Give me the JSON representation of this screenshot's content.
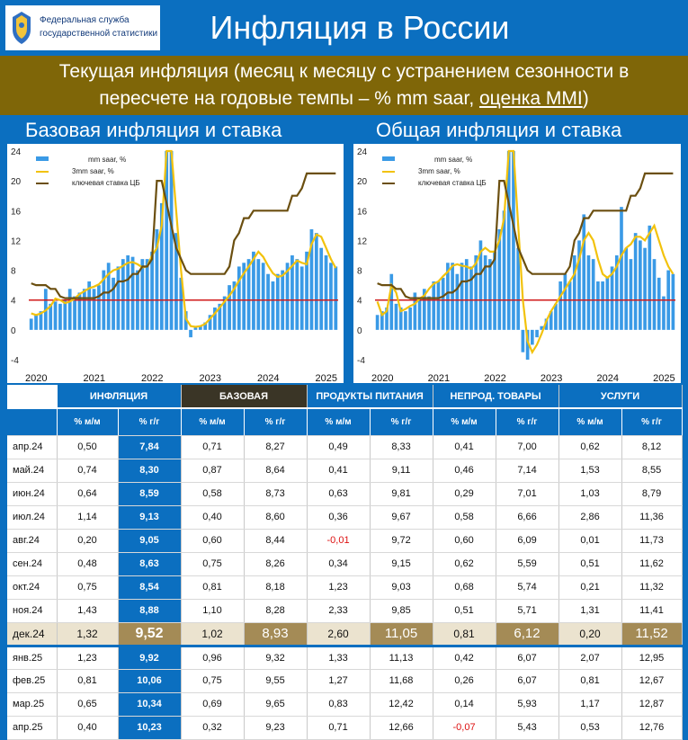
{
  "header": {
    "logo_line1": "Федеральная служба",
    "logo_line2": "государственной статистики",
    "title": "Инфляция в России"
  },
  "banner": {
    "line1": "Текущая инфляция (месяц к месяцу с устранением сезонности в",
    "line2_pre": "пересчете на годовые темпы – % mm saar, ",
    "line2_link": "оценка MMI",
    "line2_post": ")"
  },
  "colors": {
    "bars": "#3a9ae6",
    "smooth": "#f2c20c",
    "rate": "#6b4f10",
    "target": "#d11a1a",
    "accent": "#0b6fc0",
    "brown": "#7f6608"
  },
  "chart_data": [
    {
      "type": "bar",
      "title": "Базовая инфляция и ставка",
      "legend": [
        "mm saar, %",
        "3mm saar, %",
        "ключевая ставка ЦБ"
      ],
      "legend_position": "top-left",
      "x_labels": [
        "2020",
        "2021",
        "2022",
        "2023",
        "2024",
        "2025"
      ],
      "ylim": [
        -4,
        24
      ],
      "yticks": [
        -4,
        0,
        4,
        8,
        12,
        16,
        20,
        24
      ],
      "target_line": 4,
      "series": [
        {
          "name": "mm saar, %",
          "type": "bar",
          "values": [
            1.5,
            2.0,
            2.5,
            5.5,
            3.5,
            3.8,
            3.5,
            4.0,
            5.5,
            4.5,
            5.0,
            5.5,
            6.5,
            5.5,
            6.0,
            8.0,
            9.0,
            7.0,
            8.5,
            9.5,
            10,
            9.8,
            8.0,
            9.5,
            9.5,
            10.5,
            13.5,
            17,
            24,
            24,
            13,
            7,
            2.5,
            -1,
            0.3,
            0.5,
            1.0,
            2.0,
            3.0,
            3.5,
            4.5,
            6.0,
            6.5,
            8.5,
            9.0,
            9.5,
            10.5,
            9.5,
            9.0,
            7.5,
            6.5,
            7.5,
            8.0,
            9.0,
            10.0,
            9.5,
            8.5,
            10.5,
            13.5,
            13.0,
            11.0,
            10.0,
            9.0,
            8.5
          ]
        },
        {
          "name": "3mm saar, %",
          "type": "line",
          "values": [
            2.2,
            2.0,
            2.2,
            2.6,
            3.2,
            4.2,
            4.0,
            3.6,
            3.8,
            4.2,
            4.8,
            5.2,
            5.6,
            5.8,
            6.1,
            6.8,
            7.5,
            8.0,
            8.2,
            8.6,
            9.0,
            9.1,
            8.8,
            8.4,
            8.5,
            10,
            11,
            14,
            24,
            24,
            16,
            8,
            1.5,
            0.5,
            0.4,
            0.5,
            0.8,
            1.5,
            2.2,
            3.0,
            3.8,
            4.6,
            5.5,
            6.6,
            7.6,
            8.5,
            9.5,
            10.5,
            9.8,
            8.6,
            7.6,
            7.1,
            7.3,
            7.9,
            8.6,
            9.3,
            9.0,
            8.8,
            11.5,
            12.8,
            12.5,
            11.0,
            9.5,
            8.3
          ]
        },
        {
          "name": "ключевая ставка ЦБ",
          "type": "line",
          "values": [
            6.25,
            6.0,
            6.0,
            6.0,
            5.5,
            5.5,
            4.5,
            4.25,
            4.25,
            4.25,
            4.25,
            4.25,
            4.25,
            4.25,
            4.5,
            5.0,
            5.0,
            5.5,
            6.5,
            6.5,
            6.75,
            7.5,
            7.5,
            8.5,
            8.5,
            9.5,
            20,
            20,
            17,
            14,
            11,
            9.5,
            8.0,
            7.5,
            7.5,
            7.5,
            7.5,
            7.5,
            7.5,
            7.5,
            7.5,
            8.5,
            12,
            13,
            15,
            15,
            16,
            16,
            16,
            16,
            16,
            16,
            16,
            16,
            18,
            18,
            19,
            21,
            21,
            21,
            21,
            21,
            21,
            21
          ]
        }
      ]
    },
    {
      "type": "bar",
      "title": "Общая инфляция и ставка",
      "legend": [
        "mm saar, %",
        "3mm saar, %",
        "ключевая ставка ЦБ"
      ],
      "legend_position": "top-left",
      "x_labels": [
        "2020",
        "2021",
        "2022",
        "2023",
        "2024",
        "2025"
      ],
      "ylim": [
        -4,
        24
      ],
      "yticks": [
        -4,
        0,
        4,
        8,
        12,
        16,
        20,
        24
      ],
      "target_line": 4,
      "series": [
        {
          "name": "mm saar, %",
          "type": "bar",
          "values": [
            2.0,
            2.5,
            3.0,
            7.5,
            3.5,
            3.0,
            2.5,
            3.0,
            5.0,
            4.0,
            5.5,
            4.5,
            6.5,
            6.5,
            7.0,
            9.0,
            9.0,
            7.5,
            9.0,
            9.5,
            8.5,
            10,
            12,
            10,
            9.5,
            10.5,
            13.5,
            16,
            24,
            24,
            11,
            -3,
            -4,
            -2,
            -1,
            0.5,
            1.5,
            2.5,
            3.5,
            6.5,
            7.5,
            6.5,
            10,
            12,
            15.5,
            10,
            9.5,
            6.5,
            6.5,
            7.0,
            8.5,
            10,
            16.5,
            11,
            9.5,
            13,
            12,
            11,
            14,
            9.5,
            7.0,
            4.5,
            8.0,
            7.5
          ]
        },
        {
          "name": "3mm saar, %",
          "type": "line",
          "values": [
            3.8,
            2.0,
            2.5,
            6.0,
            5.0,
            2.5,
            2.8,
            3.2,
            3.5,
            4.2,
            4.6,
            5.5,
            6.2,
            6.5,
            7.2,
            7.8,
            8.6,
            8.8,
            8.6,
            8.5,
            8.2,
            8.9,
            10.5,
            11,
            10.5,
            10.5,
            12,
            15,
            24,
            24,
            14,
            4,
            -1.5,
            -3,
            -2,
            -0.5,
            1.2,
            2.5,
            3.5,
            4.5,
            5.5,
            6.5,
            7.5,
            9.5,
            12,
            13,
            12,
            9.5,
            7.5,
            7.0,
            7.5,
            8.5,
            10,
            11,
            11.5,
            12.5,
            12.5,
            12,
            13,
            14,
            12,
            10,
            8.5,
            7.5
          ]
        },
        {
          "name": "ключевая ставка ЦБ",
          "type": "line",
          "values": [
            6.25,
            6.0,
            6.0,
            6.0,
            5.5,
            5.5,
            4.5,
            4.25,
            4.25,
            4.25,
            4.25,
            4.25,
            4.25,
            4.25,
            4.5,
            5.0,
            5.0,
            5.5,
            6.5,
            6.5,
            6.75,
            7.5,
            7.5,
            8.5,
            8.5,
            9.5,
            20,
            20,
            17,
            14,
            11,
            9.5,
            8.0,
            7.5,
            7.5,
            7.5,
            7.5,
            7.5,
            7.5,
            7.5,
            7.5,
            8.5,
            12,
            13,
            15,
            15,
            16,
            16,
            16,
            16,
            16,
            16,
            16,
            16,
            18,
            18,
            19,
            21,
            21,
            21,
            21,
            21,
            21,
            21
          ]
        }
      ]
    }
  ],
  "subtitles": {
    "left": "Базовая инфляция и ставка",
    "right": "Общая инфляция и ставка"
  },
  "table": {
    "groups": [
      {
        "label": "ИНФЛЯЦИЯ",
        "style": "blue"
      },
      {
        "label": "БАЗОВАЯ",
        "style": "dark"
      },
      {
        "label": "ПРОДУКТЫ ПИТАНИЯ",
        "style": "blue"
      },
      {
        "label": "НЕПРОД. ТОВАРЫ",
        "style": "blue"
      },
      {
        "label": "УСЛУГИ",
        "style": "blue"
      }
    ],
    "col_headers": [
      "% м/м",
      "% г/г",
      "% м/м",
      "% г/г",
      "% м/м",
      "% г/г",
      "% м/м",
      "% г/г",
      "% м/м",
      "% г/г"
    ],
    "rows": [
      {
        "m": "апр.24",
        "v": [
          "0,50",
          "7,84",
          "0,71",
          "8,27",
          "0,49",
          "8,33",
          "0,41",
          "7,00",
          "0,62",
          "8,12"
        ]
      },
      {
        "m": "май.24",
        "v": [
          "0,74",
          "8,30",
          "0,87",
          "8,64",
          "0,41",
          "9,11",
          "0,46",
          "7,14",
          "1,53",
          "8,55"
        ]
      },
      {
        "m": "июн.24",
        "v": [
          "0,64",
          "8,59",
          "0,58",
          "8,73",
          "0,63",
          "9,81",
          "0,29",
          "7,01",
          "1,03",
          "8,79"
        ]
      },
      {
        "m": "июл.24",
        "v": [
          "1,14",
          "9,13",
          "0,40",
          "8,60",
          "0,36",
          "9,67",
          "0,58",
          "6,66",
          "2,86",
          "11,36"
        ]
      },
      {
        "m": "авг.24",
        "v": [
          "0,20",
          "9,05",
          "0,60",
          "8,44",
          "-0,01",
          "9,72",
          "0,60",
          "6,09",
          "0,01",
          "11,73"
        ]
      },
      {
        "m": "сен.24",
        "v": [
          "0,48",
          "8,63",
          "0,75",
          "8,26",
          "0,34",
          "9,15",
          "0,62",
          "5,59",
          "0,51",
          "11,62"
        ]
      },
      {
        "m": "окт.24",
        "v": [
          "0,75",
          "8,54",
          "0,81",
          "8,18",
          "1,23",
          "9,03",
          "0,68",
          "5,74",
          "0,21",
          "11,32"
        ]
      },
      {
        "m": "ноя.24",
        "v": [
          "1,43",
          "8,88",
          "1,10",
          "8,28",
          "2,33",
          "9,85",
          "0,51",
          "5,71",
          "1,31",
          "11,41"
        ]
      },
      {
        "m": "дек.24",
        "v": [
          "1,32",
          "9,52",
          "1,02",
          "8,93",
          "2,60",
          "11,05",
          "0,81",
          "6,12",
          "0,20",
          "11,52"
        ]
      },
      {
        "m": "янв.25",
        "v": [
          "1,23",
          "9,92",
          "0,96",
          "9,32",
          "1,33",
          "11,13",
          "0,42",
          "6,07",
          "2,07",
          "12,95"
        ]
      },
      {
        "m": "фев.25",
        "v": [
          "0,81",
          "10,06",
          "0,75",
          "9,55",
          "1,27",
          "11,68",
          "0,26",
          "6,07",
          "0,81",
          "12,67"
        ]
      },
      {
        "m": "мар.25",
        "v": [
          "0,65",
          "10,34",
          "0,69",
          "9,65",
          "0,83",
          "12,42",
          "0,14",
          "5,93",
          "1,17",
          "12,87"
        ]
      },
      {
        "m": "апр.25",
        "v": [
          "0,40",
          "10,23",
          "0,32",
          "9,23",
          "0,71",
          "12,66",
          "-0,07",
          "5,43",
          "0,53",
          "12,76"
        ]
      }
    ]
  }
}
